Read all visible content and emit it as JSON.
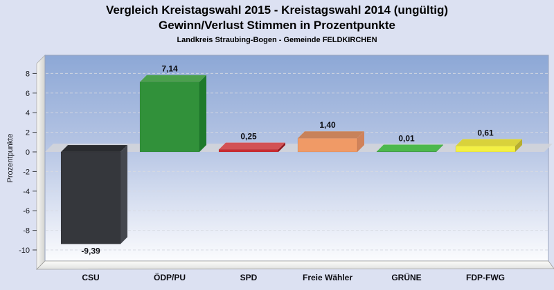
{
  "header": {
    "title_line1": "Vergleich Kreistagswahl 2015 - Kreistagswahl 2014 (ungültig)",
    "title_line2": "Gewinn/Verlust Stimmen in Prozentpunkte",
    "subtitle": "Landkreis Straubing-Bogen - Gemeinde FELDKIRCHEN"
  },
  "chart_data": {
    "type": "bar",
    "title": "Vergleich Kreistagswahl 2015 - Kreistagswahl 2014 (ungültig) Gewinn/Verlust Stimmen in Prozentpunkte",
    "subtitle": "Landkreis Straubing-Bogen - Gemeinde FELDKIRCHEN",
    "categories": [
      "CSU",
      "ÖDP/PU",
      "SPD",
      "Freie Wähler",
      "GRÜNE",
      "FDP-FWG"
    ],
    "values": [
      -9.39,
      7.14,
      0.25,
      1.4,
      0.01,
      0.61
    ],
    "value_labels": [
      "-9,39",
      "7,14",
      "0,25",
      "1,40",
      "0,01",
      "0,61"
    ],
    "bar_colors": [
      {
        "front": "#35373c",
        "top": "#2a2c30",
        "side": "#44474e"
      },
      {
        "front": "#31913a",
        "top": "#4ba04d",
        "side": "#1e7a2b"
      },
      {
        "front": "#cb2a30",
        "top": "#d25255",
        "side": "#8e161d"
      },
      {
        "front": "#f09a66",
        "top": "#c8825a",
        "side": "#d0825a"
      },
      {
        "front": "#21a32b",
        "top": "#4cb84c",
        "side": "#178a20"
      },
      {
        "front": "#f3f043",
        "top": "#d9d23b",
        "side": "#b7ae2e"
      }
    ],
    "xlabel": "",
    "ylabel": "Prozentpunkte",
    "ylim": [
      -11,
      9.8
    ],
    "yticks": [
      8,
      6,
      4,
      2,
      0,
      -2,
      -4,
      -6,
      -8,
      -10
    ],
    "grid": "dashed-horizontal",
    "legend": "none",
    "style": "3d-bars-on-blue-gradient-panel"
  }
}
